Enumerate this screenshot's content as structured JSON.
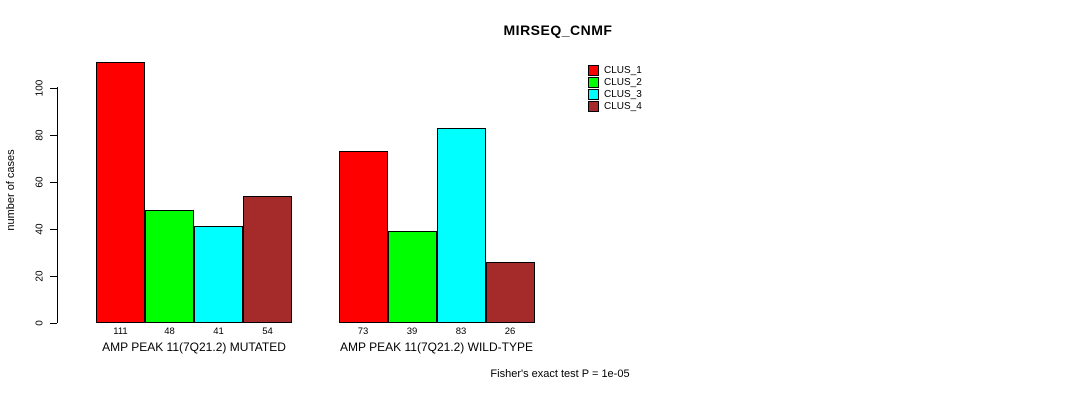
{
  "figure": {
    "title": "MIRSEQ_CNMF",
    "footer": "Fisher's exact test P = 1e-05"
  },
  "chart_data": {
    "type": "bar",
    "title": "MIRSEQ_CNMF",
    "xlabel": "",
    "ylabel": "number of cases",
    "ylim": [
      0,
      111
    ],
    "yticks": [
      0,
      20,
      40,
      60,
      80,
      100
    ],
    "grid": false,
    "legend_position": "top-right",
    "categories": [
      "AMP PEAK 11(7Q21.2) MUTATED",
      "AMP PEAK 11(7Q21.2) WILD-TYPE"
    ],
    "series": [
      {
        "name": "CLUS_1",
        "color": "#FF0000",
        "values": [
          111,
          73
        ]
      },
      {
        "name": "CLUS_2",
        "color": "#00FF00",
        "values": [
          48,
          39
        ]
      },
      {
        "name": "CLUS_3",
        "color": "#00FFFF",
        "values": [
          41,
          83
        ]
      },
      {
        "name": "CLUS_4",
        "color": "#A52A2A",
        "values": [
          54,
          26
        ]
      }
    ],
    "bar_value_labels": [
      [
        111,
        48,
        41,
        54
      ],
      [
        73,
        39,
        83,
        26
      ]
    ],
    "annotation": "Fisher's exact test P = 1e-05"
  }
}
